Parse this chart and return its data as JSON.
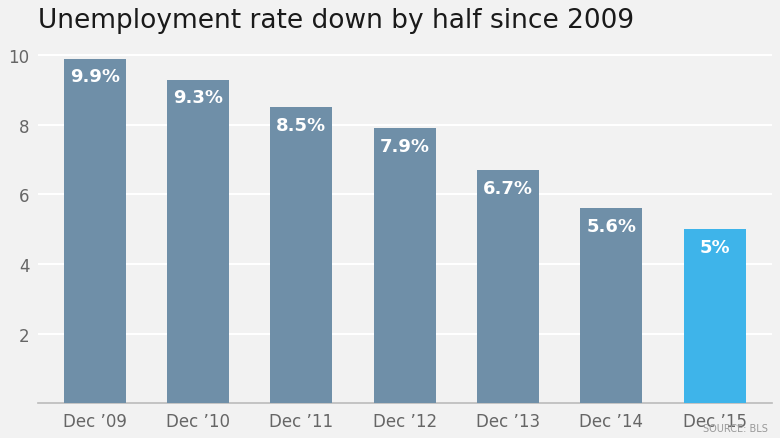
{
  "title": "Unemployment rate down by half since 2009",
  "categories": [
    "Dec ’09",
    "Dec ’10",
    "Dec ’11",
    "Dec ’12",
    "Dec ’13",
    "Dec ’14",
    "Dec ’15"
  ],
  "values": [
    9.9,
    9.3,
    8.5,
    7.9,
    6.7,
    5.6,
    5.0
  ],
  "labels": [
    "9.9%",
    "9.3%",
    "8.5%",
    "7.9%",
    "6.7%",
    "5.6%",
    "5%"
  ],
  "bar_colors": [
    "#6f8fa8",
    "#6f8fa8",
    "#6f8fa8",
    "#6f8fa8",
    "#6f8fa8",
    "#6f8fa8",
    "#3eb4ea"
  ],
  "ylim": [
    0,
    10.4
  ],
  "yticks": [
    2,
    4,
    6,
    8,
    10
  ],
  "background_color": "#f2f2f2",
  "plot_background_color": "#f2f2f2",
  "title_fontsize": 19,
  "label_fontsize": 13,
  "tick_fontsize": 12,
  "source_text": "SOURCE: BLS",
  "label_color": "#ffffff",
  "tick_color": "#666666",
  "grid_color": "#ffffff",
  "title_color": "#1a1a1a",
  "bar_width": 0.6
}
